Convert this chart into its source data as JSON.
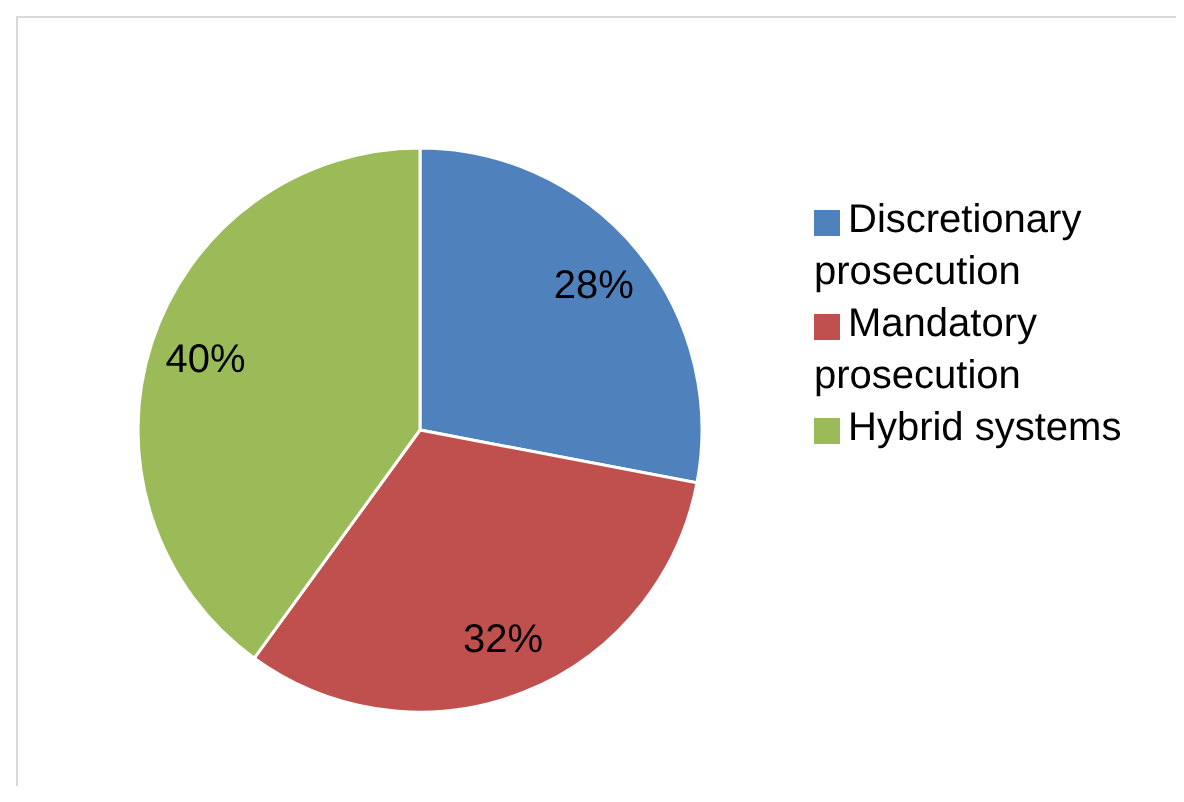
{
  "chart_data": {
    "type": "pie",
    "categories": [
      "Discretionary prosecution",
      "Mandatory prosecution",
      "Hybrid systems"
    ],
    "values": [
      28,
      32,
      40
    ],
    "value_labels": [
      "28%",
      "32%",
      "40%"
    ],
    "colors": [
      "#4f81bd",
      "#c0504d",
      "#9bbb59"
    ],
    "legend": "right"
  }
}
